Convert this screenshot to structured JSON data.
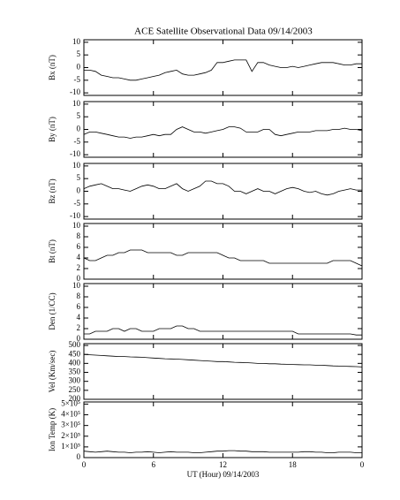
{
  "chart_data": [
    {
      "type": "line",
      "title": "ACE Satellite Observational Data   09/14/2003",
      "ylabel": "Bx (nT)",
      "x": [
        0,
        0.5,
        1,
        1.5,
        2,
        2.5,
        3,
        3.5,
        4,
        4.5,
        5,
        5.5,
        6,
        6.5,
        7,
        7.5,
        8,
        8.5,
        9,
        9.5,
        10,
        10.5,
        11,
        11.5,
        12,
        12.5,
        13,
        13.5,
        14,
        14.5,
        15,
        15.5,
        16,
        16.5,
        17,
        17.5,
        18,
        18.5,
        19,
        19.5,
        20,
        20.5,
        21,
        21.5,
        22,
        22.5,
        23,
        23.5,
        24
      ],
      "values": [
        -1,
        -1,
        -1.5,
        -3,
        -3.5,
        -4,
        -4,
        -4.5,
        -5,
        -5,
        -4.5,
        -4,
        -3.5,
        -3,
        -2,
        -1.5,
        -1,
        -2.5,
        -3,
        -3,
        -2.5,
        -2,
        -1,
        2,
        2,
        2.5,
        3,
        3,
        3,
        -1.5,
        2,
        2,
        1,
        0.5,
        0,
        0,
        0.5,
        0,
        0.5,
        1,
        1.5,
        2,
        2,
        2,
        1.5,
        1,
        1,
        1.5,
        1.5
      ],
      "color": "#000000",
      "xlim": [
        0,
        24
      ],
      "xticks": [
        0,
        6,
        12,
        18,
        24
      ],
      "ylim": [
        -11,
        11
      ],
      "yticks": [
        -10,
        -5,
        0,
        5,
        10
      ]
    },
    {
      "type": "line",
      "ylabel": "By (nT)",
      "x": [
        0,
        0.5,
        1,
        1.5,
        2,
        2.5,
        3,
        3.5,
        4,
        4.5,
        5,
        5.5,
        6,
        6.5,
        7,
        7.5,
        8,
        8.5,
        9,
        9.5,
        10,
        10.5,
        11,
        11.5,
        12,
        12.5,
        13,
        13.5,
        14,
        14.5,
        15,
        15.5,
        16,
        16.5,
        17,
        17.5,
        18,
        18.5,
        19,
        19.5,
        20,
        20.5,
        21,
        21.5,
        22,
        22.5,
        23,
        23.5,
        24
      ],
      "values": [
        -2,
        -1,
        -1,
        -1.5,
        -2,
        -2.5,
        -3,
        -3,
        -3.5,
        -3,
        -3,
        -2.5,
        -2,
        -2.5,
        -2,
        -2,
        0,
        1,
        0,
        -1,
        -1,
        -1.5,
        -1,
        -0.5,
        0,
        1,
        1,
        0.5,
        -1,
        -1,
        -1,
        0,
        0,
        -2,
        -2.5,
        -2,
        -1.5,
        -1,
        -1,
        -1,
        -0.5,
        -0.5,
        -0.5,
        0,
        0,
        0.5,
        0,
        0,
        -0.5
      ],
      "color": "#000000",
      "xlim": [
        0,
        24
      ],
      "xticks": [
        0,
        6,
        12,
        18,
        24
      ],
      "ylim": [
        -11,
        11
      ],
      "yticks": [
        -10,
        -5,
        0,
        5,
        10
      ]
    },
    {
      "type": "line",
      "ylabel": "Bz (nT)",
      "x": [
        0,
        0.5,
        1,
        1.5,
        2,
        2.5,
        3,
        3.5,
        4,
        4.5,
        5,
        5.5,
        6,
        6.5,
        7,
        7.5,
        8,
        8.5,
        9,
        9.5,
        10,
        10.5,
        11,
        11.5,
        12,
        12.5,
        13,
        13.5,
        14,
        14.5,
        15,
        15.5,
        16,
        16.5,
        17,
        17.5,
        18,
        18.5,
        19,
        19.5,
        20,
        20.5,
        21,
        21.5,
        22,
        22.5,
        23,
        23.5,
        24
      ],
      "values": [
        1,
        2,
        2.5,
        3,
        2,
        1,
        1,
        0.5,
        0,
        1,
        2,
        2.5,
        2,
        1,
        1,
        2,
        3,
        1,
        0,
        1,
        2,
        4,
        4,
        3,
        3,
        2,
        0,
        0,
        -1,
        0,
        1,
        0,
        0,
        -1,
        0,
        1,
        1.5,
        1,
        0,
        -0.5,
        0,
        -1,
        -1.5,
        -1,
        0,
        0.5,
        1,
        0.5,
        0.5
      ],
      "color": "#000000",
      "xlim": [
        0,
        24
      ],
      "xticks": [
        0,
        6,
        12,
        18,
        24
      ],
      "ylim": [
        -11,
        11
      ],
      "yticks": [
        -10,
        -5,
        0,
        5,
        10
      ]
    },
    {
      "type": "line",
      "ylabel": "Bt (nT)",
      "x": [
        0,
        0.5,
        1,
        1.5,
        2,
        2.5,
        3,
        3.5,
        4,
        4.5,
        5,
        5.5,
        6,
        6.5,
        7,
        7.5,
        8,
        8.5,
        9,
        9.5,
        10,
        10.5,
        11,
        11.5,
        12,
        12.5,
        13,
        13.5,
        14,
        14.5,
        15,
        15.5,
        16,
        16.5,
        17,
        17.5,
        18,
        18.5,
        19,
        19.5,
        20,
        20.5,
        21,
        21.5,
        22,
        22.5,
        23,
        23.5,
        24
      ],
      "values": [
        4,
        3.5,
        3.5,
        4,
        4.5,
        4.5,
        5,
        5,
        5.5,
        5.5,
        5.5,
        5,
        5,
        5,
        5,
        5,
        4.5,
        4.5,
        5,
        5,
        5,
        5,
        5,
        5,
        4.5,
        4,
        4,
        3.5,
        3.5,
        3.5,
        3.5,
        3.5,
        3,
        3,
        3,
        3,
        3,
        3,
        3,
        3,
        3,
        3,
        3,
        3.5,
        3.5,
        3.5,
        3.5,
        3,
        2.5
      ],
      "color": "#000000",
      "xlim": [
        0,
        24
      ],
      "xticks": [
        0,
        6,
        12,
        18,
        24
      ],
      "ylim": [
        0,
        10.5
      ],
      "yticks": [
        0,
        2,
        4,
        6,
        8,
        10
      ]
    },
    {
      "type": "line",
      "ylabel": "Den (1/CC)",
      "x": [
        0,
        0.5,
        1,
        1.5,
        2,
        2.5,
        3,
        3.5,
        4,
        4.5,
        5,
        5.5,
        6,
        6.5,
        7,
        7.5,
        8,
        8.5,
        9,
        9.5,
        10,
        10.5,
        11,
        11.5,
        12,
        12.5,
        13,
        13.5,
        14,
        14.5,
        15,
        15.5,
        16,
        16.5,
        17,
        17.5,
        18,
        18.5,
        19,
        19.5,
        20,
        20.5,
        21,
        21.5,
        22,
        22.5,
        23,
        23.5,
        24
      ],
      "values": [
        1,
        1,
        1.5,
        1.5,
        1.5,
        2,
        2,
        1.5,
        2,
        2,
        1.5,
        1.5,
        1.5,
        2,
        2,
        2,
        2.5,
        2.5,
        2,
        2,
        1.5,
        1.5,
        1.5,
        1.5,
        1.5,
        1.5,
        1.5,
        1.5,
        1.5,
        1.5,
        1.5,
        1.5,
        1.5,
        1.5,
        1.5,
        1.5,
        1.5,
        1,
        1,
        1,
        1,
        1,
        1,
        1,
        1,
        1,
        1,
        0.8,
        0.8
      ],
      "color": "#000000",
      "xlim": [
        0,
        24
      ],
      "xticks": [
        0,
        6,
        12,
        18,
        24
      ],
      "ylim": [
        0,
        10.5
      ],
      "yticks": [
        0,
        2,
        4,
        6,
        8,
        10
      ]
    },
    {
      "type": "line",
      "ylabel": "Vel (Km/sec)",
      "x": [
        0,
        0.5,
        1,
        1.5,
        2,
        2.5,
        3,
        3.5,
        4,
        4.5,
        5,
        5.5,
        6,
        6.5,
        7,
        7.5,
        8,
        8.5,
        9,
        9.5,
        10,
        10.5,
        11,
        11.5,
        12,
        12.5,
        13,
        13.5,
        14,
        14.5,
        15,
        15.5,
        16,
        16.5,
        17,
        17.5,
        18,
        18.5,
        19,
        19.5,
        20,
        20.5,
        21,
        21.5,
        22,
        22.5,
        23,
        23.5,
        24
      ],
      "values": [
        450,
        448,
        446,
        444,
        442,
        440,
        438,
        438,
        436,
        435,
        434,
        432,
        430,
        428,
        426,
        425,
        424,
        422,
        420,
        418,
        416,
        414,
        412,
        410,
        410,
        408,
        406,
        405,
        404,
        402,
        400,
        400,
        398,
        398,
        396,
        395,
        394,
        393,
        392,
        392,
        390,
        390,
        388,
        386,
        385,
        384,
        383,
        382,
        380
      ],
      "color": "#000000",
      "xlim": [
        0,
        24
      ],
      "xticks": [
        0,
        6,
        12,
        18,
        24
      ],
      "ylim": [
        200,
        510
      ],
      "yticks": [
        200,
        250,
        300,
        350,
        400,
        450,
        500
      ]
    },
    {
      "type": "line",
      "ylabel": "Ion Temp (K)",
      "xlabel": "UT (Hour)  09/14/2003",
      "x": [
        0,
        0.5,
        1,
        1.5,
        2,
        2.5,
        3,
        3.5,
        4,
        4.5,
        5,
        5.5,
        6,
        6.5,
        7,
        7.5,
        8,
        8.5,
        9,
        9.5,
        10,
        10.5,
        11,
        11.5,
        12,
        12.5,
        13,
        13.5,
        14,
        14.5,
        15,
        15.5,
        16,
        16.5,
        17,
        17.5,
        18,
        18.5,
        19,
        19.5,
        20,
        20.5,
        21,
        21.5,
        22,
        22.5,
        23,
        23.5,
        24
      ],
      "values": [
        60000,
        55000,
        50000,
        55000,
        60000,
        55000,
        50000,
        50000,
        45000,
        50000,
        50000,
        55000,
        50000,
        45000,
        50000,
        55000,
        50000,
        50000,
        50000,
        45000,
        45000,
        50000,
        55000,
        60000,
        60000,
        65000,
        65000,
        60000,
        60000,
        55000,
        55000,
        55000,
        50000,
        50000,
        50000,
        50000,
        50000,
        50000,
        55000,
        55000,
        50000,
        50000,
        45000,
        45000,
        50000,
        50000,
        50000,
        45000,
        45000
      ],
      "color": "#000000",
      "xlim": [
        0,
        24
      ],
      "xticks": [
        0,
        6,
        12,
        18,
        {
          "value": 24,
          "label": "0"
        }
      ],
      "ylim": [
        0,
        520000
      ],
      "yticks": [
        0,
        {
          "value": 100000,
          "label": "1×10⁵"
        },
        {
          "value": 200000,
          "label": "2×10⁵"
        },
        {
          "value": 300000,
          "label": "3×10⁵"
        },
        {
          "value": 400000,
          "label": "4×10⁵"
        },
        {
          "value": 500000,
          "label": "5×10⁵"
        }
      ]
    }
  ]
}
